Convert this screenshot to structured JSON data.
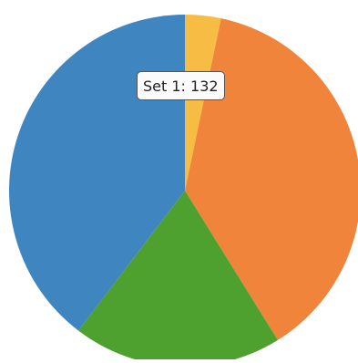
{
  "chart_data": {
    "type": "pie",
    "start_angle_deg": 0,
    "direction": "clockwise",
    "slices": [
      {
        "label": "",
        "value": 11,
        "color": "#f6bc44"
      },
      {
        "label": "",
        "value": 126,
        "color": "#ef843a"
      },
      {
        "label": "",
        "value": 64,
        "color": "#4ea12e"
      },
      {
        "label": "Set 1",
        "value": 132,
        "color": "#3f86c1"
      }
    ]
  },
  "tooltip": {
    "series": "Set 1",
    "value": "132"
  }
}
